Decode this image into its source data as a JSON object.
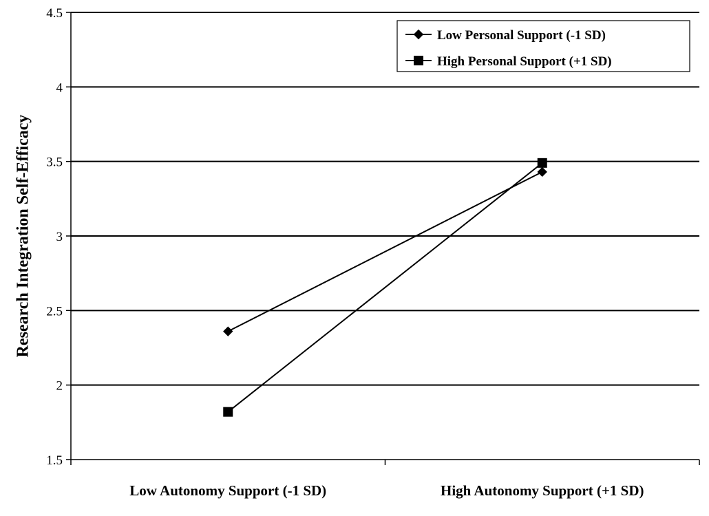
{
  "chart_data": {
    "type": "line",
    "title": "",
    "xlabel": "",
    "ylabel": "Research Integration Self-Efficacy",
    "categories": [
      "Low Autonomy Support (-1 SD)",
      "High Autonomy Support (+1 SD)"
    ],
    "ylim": [
      1.5,
      4.5
    ],
    "yticks": [
      "1.5",
      "2",
      "2.5",
      "3",
      "3.5",
      "4",
      "4.5"
    ],
    "grid": true,
    "legend_position": "top-right",
    "series": [
      {
        "name": "Low Personal Support (-1 SD)",
        "marker": "diamond",
        "values": [
          2.36,
          3.43
        ]
      },
      {
        "name": "High Personal Support (+1 SD)",
        "marker": "square",
        "values": [
          1.82,
          3.49
        ]
      }
    ],
    "colors": {
      "line": "#000000",
      "grid": "#000000",
      "background": "#ffffff"
    }
  }
}
